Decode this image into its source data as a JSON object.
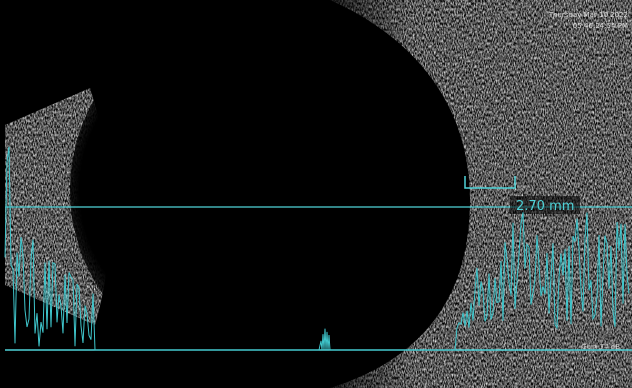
{
  "header": {
    "date": "Thursday Mar 10 2022",
    "time": "05:46:24:54 PM"
  },
  "measurement": {
    "label": "2.70 mm"
  },
  "footer": {
    "gain": "Gain 74 dB"
  }
}
